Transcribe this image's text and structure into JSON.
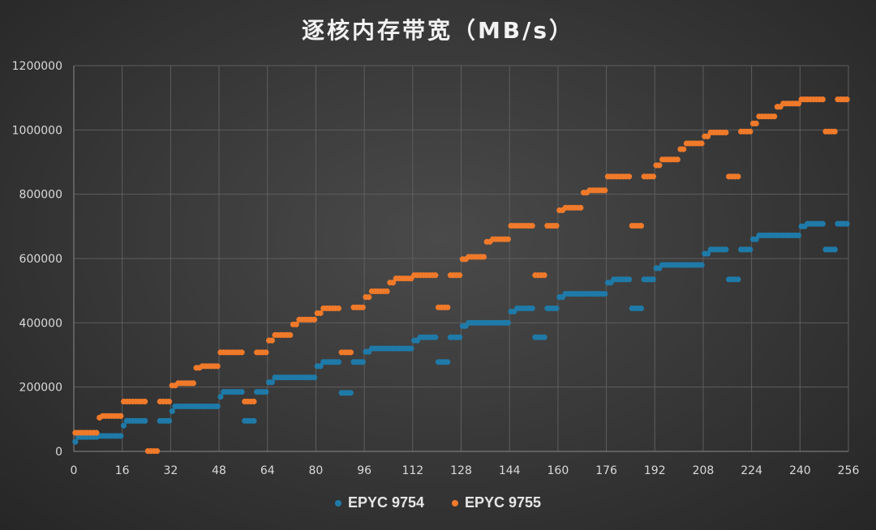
{
  "chart_data": {
    "type": "scatter",
    "title": "逐核内存带宽（MB/s）",
    "xlabel": "",
    "ylabel": "",
    "xlim": [
      0,
      256
    ],
    "ylim": [
      0,
      1200000
    ],
    "x_ticks": [
      "0",
      "16",
      "32",
      "48",
      "64",
      "80",
      "96",
      "112",
      "128",
      "144",
      "160",
      "176",
      "192",
      "208",
      "224",
      "240",
      "256"
    ],
    "y_ticks": [
      "0",
      "200000",
      "400000",
      "600000",
      "800000",
      "1000000",
      "1200000"
    ],
    "grid": true,
    "legend_position": "bottom",
    "series": [
      {
        "name": "EPYC 9754",
        "color": "#1f7aa8",
        "segments": [
          [
            0,
            1,
            30000
          ],
          [
            1,
            8,
            45000
          ],
          [
            8,
            16,
            48000
          ],
          [
            16,
            17,
            80000
          ],
          [
            17,
            24,
            95000
          ],
          [
            28,
            32,
            95000
          ],
          [
            32,
            33,
            125000
          ],
          [
            33,
            40,
            140000
          ],
          [
            40,
            48,
            140000
          ],
          [
            48,
            49,
            170000
          ],
          [
            49,
            56,
            185000
          ],
          [
            56,
            60,
            95000
          ],
          [
            60,
            64,
            185000
          ],
          [
            64,
            66,
            215000
          ],
          [
            66,
            72,
            230000
          ],
          [
            72,
            80,
            230000
          ],
          [
            80,
            82,
            265000
          ],
          [
            82,
            88,
            278000
          ],
          [
            88,
            92,
            182000
          ],
          [
            92,
            96,
            278000
          ],
          [
            96,
            98,
            310000
          ],
          [
            98,
            104,
            320000
          ],
          [
            104,
            112,
            320000
          ],
          [
            112,
            114,
            345000
          ],
          [
            114,
            120,
            355000
          ],
          [
            120,
            124,
            278000
          ],
          [
            124,
            128,
            355000
          ],
          [
            128,
            130,
            390000
          ],
          [
            130,
            136,
            400000
          ],
          [
            136,
            144,
            400000
          ],
          [
            144,
            146,
            435000
          ],
          [
            146,
            152,
            445000
          ],
          [
            152,
            156,
            355000
          ],
          [
            156,
            160,
            445000
          ],
          [
            160,
            162,
            480000
          ],
          [
            162,
            168,
            490000
          ],
          [
            168,
            176,
            490000
          ],
          [
            176,
            178,
            525000
          ],
          [
            178,
            184,
            535000
          ],
          [
            184,
            188,
            445000
          ],
          [
            188,
            192,
            535000
          ],
          [
            192,
            194,
            570000
          ],
          [
            194,
            200,
            580000
          ],
          [
            200,
            208,
            580000
          ],
          [
            208,
            210,
            615000
          ],
          [
            210,
            216,
            628000
          ],
          [
            216,
            220,
            535000
          ],
          [
            220,
            224,
            628000
          ],
          [
            224,
            226,
            660000
          ],
          [
            226,
            232,
            672000
          ],
          [
            232,
            240,
            672000
          ],
          [
            240,
            242,
            700000
          ],
          [
            242,
            248,
            708000
          ],
          [
            248,
            252,
            628000
          ],
          [
            252,
            256,
            708000
          ]
        ]
      },
      {
        "name": "EPYC 9755",
        "color": "#f07a2a",
        "segments": [
          [
            0,
            8,
            58000
          ],
          [
            8,
            9,
            105000
          ],
          [
            9,
            16,
            110000
          ],
          [
            16,
            24,
            155000
          ],
          [
            24,
            28,
            1000
          ],
          [
            28,
            32,
            155000
          ],
          [
            32,
            34,
            205000
          ],
          [
            34,
            40,
            212000
          ],
          [
            40,
            42,
            260000
          ],
          [
            42,
            48,
            265000
          ],
          [
            48,
            56,
            308000
          ],
          [
            56,
            60,
            155000
          ],
          [
            60,
            64,
            308000
          ],
          [
            64,
            66,
            345000
          ],
          [
            66,
            72,
            362000
          ],
          [
            72,
            74,
            395000
          ],
          [
            74,
            80,
            410000
          ],
          [
            80,
            82,
            430000
          ],
          [
            82,
            88,
            445000
          ],
          [
            88,
            92,
            308000
          ],
          [
            92,
            96,
            448000
          ],
          [
            96,
            98,
            480000
          ],
          [
            98,
            104,
            498000
          ],
          [
            104,
            106,
            525000
          ],
          [
            106,
            112,
            538000
          ],
          [
            112,
            120,
            548000
          ],
          [
            120,
            124,
            448000
          ],
          [
            124,
            128,
            548000
          ],
          [
            128,
            130,
            598000
          ],
          [
            130,
            136,
            605000
          ],
          [
            136,
            138,
            652000
          ],
          [
            138,
            144,
            660000
          ],
          [
            144,
            152,
            702000
          ],
          [
            152,
            156,
            548000
          ],
          [
            156,
            160,
            702000
          ],
          [
            160,
            162,
            750000
          ],
          [
            162,
            168,
            758000
          ],
          [
            168,
            170,
            805000
          ],
          [
            170,
            176,
            812000
          ],
          [
            176,
            184,
            855000
          ],
          [
            184,
            188,
            702000
          ],
          [
            188,
            192,
            855000
          ],
          [
            192,
            194,
            890000
          ],
          [
            194,
            200,
            908000
          ],
          [
            200,
            202,
            940000
          ],
          [
            202,
            208,
            958000
          ],
          [
            208,
            210,
            980000
          ],
          [
            210,
            216,
            992000
          ],
          [
            216,
            220,
            855000
          ],
          [
            220,
            224,
            995000
          ],
          [
            224,
            226,
            1020000
          ],
          [
            226,
            232,
            1042000
          ],
          [
            232,
            234,
            1072000
          ],
          [
            234,
            240,
            1082000
          ],
          [
            240,
            248,
            1095000
          ],
          [
            248,
            252,
            995000
          ],
          [
            252,
            256,
            1095000
          ]
        ]
      }
    ]
  }
}
